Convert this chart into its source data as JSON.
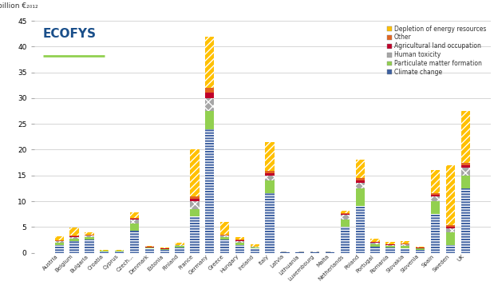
{
  "countries": [
    "Austria",
    "Belgium",
    "Bulgaria",
    "Croatia",
    "Cyprus",
    "Czech...",
    "Denmark",
    "Estonia",
    "Finland",
    "France",
    "Germany",
    "Greece",
    "Hungary",
    "Ireland",
    "Italy",
    "Latvia",
    "Lithuania",
    "Luxembourg",
    "Malta",
    "Netherlands",
    "Poland",
    "Portugal",
    "Romania",
    "Slovakia",
    "Slovenia",
    "Spain",
    "Sweden",
    "UK"
  ],
  "climate_change": [
    1.5,
    2.2,
    2.5,
    0.3,
    0.3,
    4.2,
    0.8,
    0.5,
    1.0,
    7.0,
    24.0,
    2.5,
    1.5,
    0.8,
    11.5,
    0.1,
    0.1,
    0.1,
    0.1,
    5.0,
    9.0,
    1.2,
    1.0,
    0.8,
    0.5,
    7.5,
    1.5,
    12.5
  ],
  "particulate_matter": [
    0.4,
    0.5,
    0.5,
    0.05,
    0.05,
    1.5,
    0.15,
    0.15,
    0.25,
    1.5,
    3.5,
    0.5,
    0.5,
    0.2,
    2.5,
    0.04,
    0.04,
    0.04,
    0.04,
    1.5,
    3.5,
    0.5,
    0.3,
    0.5,
    0.3,
    2.5,
    2.5,
    2.5
  ],
  "human_toxicity": [
    0.3,
    0.4,
    0.3,
    0.04,
    0.04,
    0.7,
    0.1,
    0.1,
    0.15,
    1.5,
    2.5,
    0.3,
    0.3,
    0.1,
    1.0,
    0.03,
    0.03,
    0.03,
    0.03,
    0.8,
    1.0,
    0.25,
    0.2,
    0.3,
    0.1,
    1.0,
    0.8,
    1.5
  ],
  "agri_land": [
    0.1,
    0.15,
    0.1,
    0.02,
    0.02,
    0.2,
    0.05,
    0.05,
    0.05,
    0.5,
    1.0,
    0.1,
    0.1,
    0.05,
    0.5,
    0.01,
    0.01,
    0.01,
    0.01,
    0.2,
    0.5,
    0.1,
    0.1,
    0.1,
    0.05,
    0.3,
    0.3,
    0.5
  ],
  "other": [
    0.1,
    0.15,
    0.1,
    0.02,
    0.02,
    0.2,
    0.05,
    0.05,
    0.05,
    0.5,
    1.0,
    0.1,
    0.1,
    0.05,
    0.4,
    0.01,
    0.01,
    0.01,
    0.01,
    0.2,
    0.5,
    0.1,
    0.1,
    0.1,
    0.05,
    0.3,
    0.3,
    0.5
  ],
  "depletion": [
    0.8,
    1.5,
    0.5,
    0.08,
    0.08,
    1.0,
    0.2,
    0.2,
    0.5,
    9.0,
    10.0,
    2.5,
    0.5,
    0.5,
    5.5,
    0.04,
    0.04,
    0.04,
    0.04,
    0.5,
    3.5,
    0.5,
    0.4,
    0.5,
    0.2,
    4.5,
    11.5,
    10.0
  ],
  "colors": {
    "climate_change": "#3c5fa0",
    "particulate_matter": "#92d050",
    "human_toxicity": "#a6a6a6",
    "agri_land": "#c0002a",
    "other": "#e36420",
    "depletion": "#ffc000"
  },
  "legend_labels": [
    "Depletion of energy resources",
    "Other",
    "Agricultural land occupation",
    "Human toxicity",
    "Particulate matter formation",
    "Climate change"
  ],
  "ylim": [
    0,
    45
  ],
  "yticks": [
    0,
    5,
    10,
    15,
    20,
    25,
    30,
    35,
    40,
    45
  ],
  "background_color": "#ffffff",
  "ecofys_color": "#1a4f8a",
  "ecofys_underline_color": "#92d050",
  "grid_color": "#d0d0d0"
}
